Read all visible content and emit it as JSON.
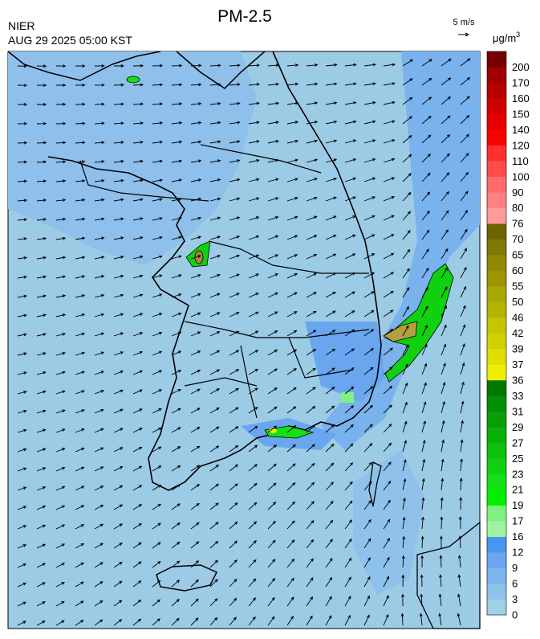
{
  "header": {
    "title": "PM-2.5",
    "agency": "NIER",
    "time": "AUG 29 2025 05:00 KST",
    "wind_scale": "5 m/s"
  },
  "colorbar": {
    "unit": "μg/m",
    "unit_superscript": "3",
    "ticks": [
      0,
      3,
      6,
      9,
      12,
      16,
      17,
      19,
      21,
      23,
      25,
      27,
      29,
      31,
      33,
      36,
      37,
      39,
      42,
      46,
      50,
      55,
      60,
      65,
      70,
      76,
      80,
      90,
      100,
      110,
      120,
      140,
      150,
      160,
      170,
      200
    ],
    "colors": [
      "#a0cfe8",
      "#8fc2ea",
      "#7eb4ee",
      "#6aa6f0",
      "#4896f0",
      "#a0f4a0",
      "#80f080",
      "#00f000",
      "#14e014",
      "#10d010",
      "#0cc00c",
      "#08b008",
      "#06a006",
      "#049004",
      "#007800",
      "#eeee00",
      "#dede00",
      "#d0d000",
      "#c4c400",
      "#b4b400",
      "#a8a800",
      "#9c9400",
      "#908800",
      "#807800",
      "#6e6400",
      "#ff9a9a",
      "#ff8282",
      "#ff6a6a",
      "#ff4c4c",
      "#ff3030",
      "#ff0000",
      "#e80000",
      "#d00000",
      "#b80000",
      "#a00000",
      "#780000"
    ]
  }
}
